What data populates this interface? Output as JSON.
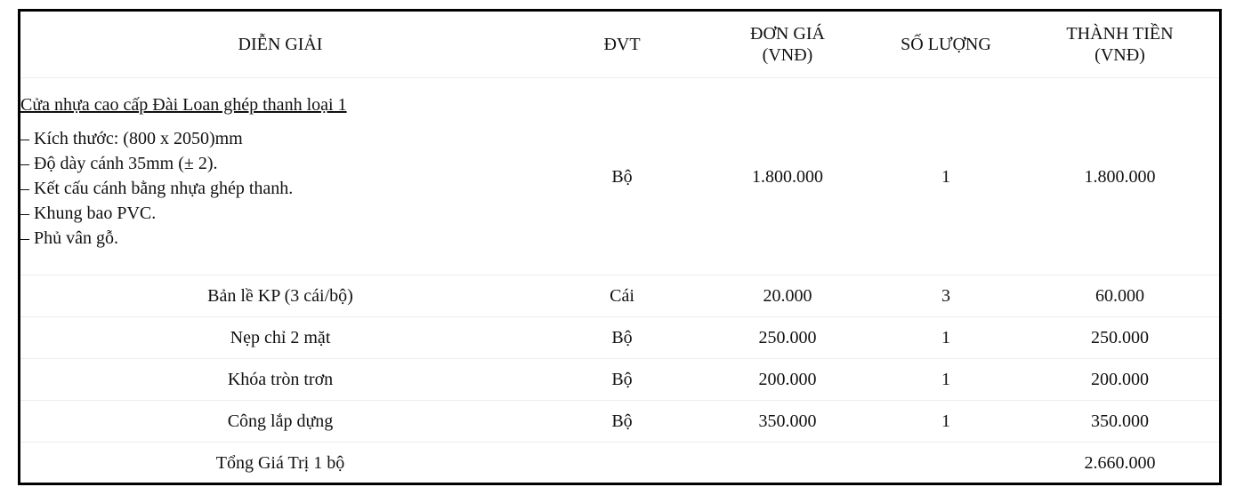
{
  "headers": {
    "description": "DIỄN GIẢI",
    "unit": "ĐVT",
    "unit_price_line1": "ĐƠN GIÁ",
    "unit_price_line2": "(VNĐ)",
    "quantity": "SỐ LƯỢNG",
    "amount_line1": "THÀNH TIỀN",
    "amount_line2": "(VNĐ)"
  },
  "main_item": {
    "title": "Cửa nhựa cao cấp Đài Loan ghép thanh loại 1",
    "specs": [
      "– Kích thước: (800 x 2050)mm",
      "– Độ dày cánh 35mm (± 2).",
      "– Kết cấu cánh bằng nhựa ghép thanh.",
      "– Khung bao PVC.",
      "– Phủ vân gỗ."
    ],
    "unit": "Bộ",
    "unit_price": "1.800.000",
    "quantity": "1",
    "amount": "1.800.000"
  },
  "rows": [
    {
      "description": "Bản lề KP (3 cái/bộ)",
      "unit": "Cái",
      "unit_price": "20.000",
      "quantity": "3",
      "amount": "60.000"
    },
    {
      "description": "Nẹp chỉ 2 mặt",
      "unit": "Bộ",
      "unit_price": "250.000",
      "quantity": "1",
      "amount": "250.000"
    },
    {
      "description": "Khóa tròn trơn",
      "unit": "Bộ",
      "unit_price": "200.000",
      "quantity": "1",
      "amount": "200.000"
    },
    {
      "description": "Công lắp dựng",
      "unit": "Bộ",
      "unit_price": "350.000",
      "quantity": "1",
      "amount": "350.000"
    }
  ],
  "total": {
    "label": "Tổng Giá Trị 1 bộ",
    "amount": "2.660.000"
  }
}
